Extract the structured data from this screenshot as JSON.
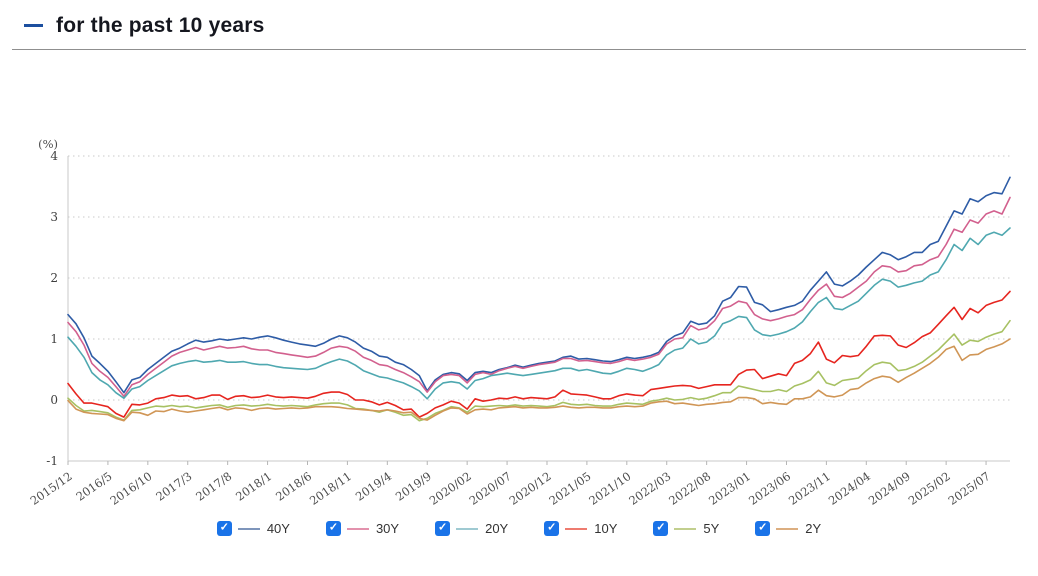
{
  "header": {
    "title": "for the past 10 years",
    "dash_color": "#1c4f9f"
  },
  "legend": {
    "checkbox_color": "#1a73e8",
    "check_glyph": "✓"
  },
  "chart_data": {
    "type": "line",
    "title": "",
    "ylabel": "(%)",
    "xlabel": "",
    "ylim": [
      -1,
      4
    ],
    "yticks": [
      4,
      3,
      2,
      1,
      0,
      -1
    ],
    "grid": "horizontal-dotted",
    "legend_position": "bottom",
    "x_start": "2015/12",
    "x_end": "2025/10",
    "x_interval": "monthly",
    "tick_every_months": 5,
    "x_tick_labels": [
      "2015/12",
      "2016/5",
      "2016/10",
      "2017/3",
      "2017/8",
      "2018/1",
      "2018/6",
      "2018/11",
      "2019/4",
      "2019/9",
      "2020/02",
      "2020/07",
      "2020/12",
      "2021/05",
      "2021/10",
      "2022/03",
      "2022/08",
      "2023/01",
      "2023/06",
      "2023/11",
      "2024/04",
      "2024/09",
      "2025/02",
      "2025/07"
    ],
    "series": [
      {
        "name": "40Y",
        "checked": true,
        "color": "#2e5ca6",
        "legend_color": "#7e95bb",
        "values": [
          1.4,
          1.25,
          1.02,
          0.72,
          0.6,
          0.47,
          0.3,
          0.12,
          0.33,
          0.37,
          0.5,
          0.6,
          0.7,
          0.8,
          0.85,
          0.92,
          0.98,
          0.95,
          0.97,
          1.0,
          0.98,
          1.0,
          1.02,
          1.0,
          1.03,
          1.05,
          1.02,
          0.98,
          0.95,
          0.92,
          0.9,
          0.88,
          0.93,
          1.0,
          1.05,
          1.02,
          0.95,
          0.85,
          0.8,
          0.72,
          0.7,
          0.62,
          0.58,
          0.5,
          0.4,
          0.15,
          0.33,
          0.42,
          0.45,
          0.43,
          0.32,
          0.45,
          0.47,
          0.45,
          0.5,
          0.53,
          0.57,
          0.54,
          0.57,
          0.6,
          0.62,
          0.64,
          0.7,
          0.72,
          0.67,
          0.68,
          0.66,
          0.64,
          0.63,
          0.66,
          0.7,
          0.68,
          0.7,
          0.73,
          0.78,
          0.96,
          1.05,
          1.1,
          1.29,
          1.24,
          1.26,
          1.38,
          1.62,
          1.68,
          1.86,
          1.85,
          1.6,
          1.56,
          1.45,
          1.48,
          1.52,
          1.55,
          1.62,
          1.8,
          1.95,
          2.1,
          1.9,
          1.87,
          1.95,
          2.05,
          2.18,
          2.3,
          2.42,
          2.38,
          2.3,
          2.35,
          2.42,
          2.42,
          2.55,
          2.6,
          2.85,
          3.1,
          3.05,
          3.3,
          3.25,
          3.35,
          3.4,
          3.38,
          3.65
        ]
      },
      {
        "name": "30Y",
        "checked": true,
        "color": "#d2608e",
        "legend_color": "#e392ad",
        "values": [
          1.27,
          1.12,
          0.9,
          0.6,
          0.47,
          0.37,
          0.22,
          0.06,
          0.25,
          0.3,
          0.42,
          0.52,
          0.62,
          0.72,
          0.78,
          0.82,
          0.86,
          0.82,
          0.85,
          0.88,
          0.85,
          0.86,
          0.88,
          0.84,
          0.82,
          0.82,
          0.78,
          0.76,
          0.74,
          0.72,
          0.7,
          0.72,
          0.78,
          0.85,
          0.88,
          0.86,
          0.8,
          0.7,
          0.65,
          0.58,
          0.56,
          0.5,
          0.45,
          0.38,
          0.3,
          0.13,
          0.3,
          0.4,
          0.42,
          0.4,
          0.28,
          0.42,
          0.45,
          0.42,
          0.48,
          0.52,
          0.55,
          0.52,
          0.55,
          0.58,
          0.6,
          0.62,
          0.68,
          0.68,
          0.64,
          0.65,
          0.63,
          0.61,
          0.6,
          0.63,
          0.67,
          0.65,
          0.67,
          0.7,
          0.75,
          0.92,
          1.0,
          1.02,
          1.22,
          1.15,
          1.18,
          1.3,
          1.5,
          1.54,
          1.62,
          1.59,
          1.4,
          1.33,
          1.3,
          1.33,
          1.37,
          1.4,
          1.48,
          1.65,
          1.8,
          1.9,
          1.7,
          1.68,
          1.75,
          1.85,
          1.95,
          2.1,
          2.2,
          2.18,
          2.1,
          2.12,
          2.2,
          2.22,
          2.3,
          2.35,
          2.55,
          2.8,
          2.75,
          2.95,
          2.9,
          3.05,
          3.1,
          3.05,
          3.32
        ]
      },
      {
        "name": "20Y",
        "checked": true,
        "color": "#4fa8b0",
        "legend_color": "#9fcad2",
        "values": [
          1.03,
          0.88,
          0.7,
          0.45,
          0.33,
          0.25,
          0.12,
          0.03,
          0.18,
          0.22,
          0.32,
          0.4,
          0.48,
          0.56,
          0.6,
          0.63,
          0.65,
          0.62,
          0.63,
          0.65,
          0.62,
          0.62,
          0.63,
          0.6,
          0.58,
          0.58,
          0.55,
          0.53,
          0.52,
          0.51,
          0.5,
          0.52,
          0.58,
          0.63,
          0.67,
          0.64,
          0.57,
          0.48,
          0.43,
          0.38,
          0.36,
          0.32,
          0.28,
          0.22,
          0.15,
          0.02,
          0.18,
          0.28,
          0.3,
          0.28,
          0.18,
          0.32,
          0.35,
          0.4,
          0.42,
          0.44,
          0.42,
          0.4,
          0.42,
          0.44,
          0.46,
          0.48,
          0.52,
          0.52,
          0.48,
          0.5,
          0.47,
          0.44,
          0.43,
          0.47,
          0.52,
          0.5,
          0.47,
          0.52,
          0.58,
          0.74,
          0.82,
          0.85,
          1.0,
          0.92,
          0.95,
          1.05,
          1.25,
          1.3,
          1.37,
          1.35,
          1.15,
          1.07,
          1.05,
          1.08,
          1.12,
          1.18,
          1.28,
          1.45,
          1.6,
          1.68,
          1.5,
          1.48,
          1.55,
          1.62,
          1.75,
          1.88,
          1.98,
          1.95,
          1.85,
          1.88,
          1.92,
          1.95,
          2.05,
          2.1,
          2.3,
          2.55,
          2.45,
          2.65,
          2.55,
          2.7,
          2.75,
          2.7,
          2.82
        ]
      },
      {
        "name": "10Y",
        "checked": true,
        "color": "#e6251f",
        "legend_color": "#ee7b6f",
        "values": [
          0.27,
          0.1,
          -0.05,
          -0.05,
          -0.08,
          -0.11,
          -0.22,
          -0.28,
          -0.07,
          -0.08,
          -0.05,
          0.02,
          0.04,
          0.08,
          0.06,
          0.07,
          0.02,
          0.04,
          0.08,
          0.08,
          0.01,
          0.06,
          0.07,
          0.04,
          0.05,
          0.08,
          0.05,
          0.04,
          0.05,
          0.04,
          0.03,
          0.06,
          0.11,
          0.13,
          0.13,
          0.09,
          0.0,
          0.0,
          -0.03,
          -0.08,
          -0.04,
          -0.09,
          -0.16,
          -0.15,
          -0.28,
          -0.22,
          -0.13,
          -0.08,
          -0.02,
          -0.05,
          -0.15,
          0.02,
          -0.02,
          0.0,
          0.03,
          0.02,
          0.05,
          0.02,
          0.04,
          0.03,
          0.02,
          0.05,
          0.16,
          0.1,
          0.09,
          0.08,
          0.05,
          0.02,
          0.02,
          0.07,
          0.1,
          0.08,
          0.07,
          0.17,
          0.19,
          0.21,
          0.23,
          0.24,
          0.23,
          0.19,
          0.22,
          0.25,
          0.25,
          0.25,
          0.42,
          0.49,
          0.5,
          0.35,
          0.39,
          0.43,
          0.4,
          0.6,
          0.65,
          0.76,
          0.95,
          0.67,
          0.61,
          0.73,
          0.71,
          0.73,
          0.88,
          1.05,
          1.06,
          1.05,
          0.9,
          0.86,
          0.94,
          1.04,
          1.1,
          1.24,
          1.38,
          1.52,
          1.32,
          1.5,
          1.43,
          1.55,
          1.6,
          1.64,
          1.78
        ]
      },
      {
        "name": "5Y",
        "checked": true,
        "color": "#a7c163",
        "legend_color": "#c2cf8e",
        "values": [
          0.03,
          -0.09,
          -0.18,
          -0.17,
          -0.19,
          -0.21,
          -0.28,
          -0.33,
          -0.17,
          -0.16,
          -0.13,
          -0.1,
          -0.11,
          -0.09,
          -0.11,
          -0.1,
          -0.13,
          -0.11,
          -0.09,
          -0.08,
          -0.12,
          -0.09,
          -0.08,
          -0.1,
          -0.09,
          -0.07,
          -0.09,
          -0.1,
          -0.09,
          -0.1,
          -0.11,
          -0.08,
          -0.06,
          -0.05,
          -0.05,
          -0.08,
          -0.14,
          -0.15,
          -0.17,
          -0.2,
          -0.16,
          -0.2,
          -0.25,
          -0.24,
          -0.34,
          -0.3,
          -0.22,
          -0.17,
          -0.11,
          -0.13,
          -0.2,
          -0.1,
          -0.11,
          -0.1,
          -0.09,
          -0.1,
          -0.08,
          -0.1,
          -0.09,
          -0.1,
          -0.11,
          -0.09,
          -0.04,
          -0.07,
          -0.08,
          -0.07,
          -0.09,
          -0.1,
          -0.1,
          -0.07,
          -0.05,
          -0.06,
          -0.07,
          -0.02,
          0.0,
          0.03,
          0.0,
          0.01,
          0.04,
          0.01,
          0.03,
          0.07,
          0.12,
          0.12,
          0.23,
          0.2,
          0.17,
          0.14,
          0.14,
          0.17,
          0.14,
          0.23,
          0.27,
          0.33,
          0.47,
          0.28,
          0.24,
          0.32,
          0.34,
          0.36,
          0.48,
          0.58,
          0.62,
          0.6,
          0.48,
          0.5,
          0.55,
          0.62,
          0.72,
          0.82,
          0.95,
          1.08,
          0.9,
          0.98,
          0.96,
          1.03,
          1.08,
          1.12,
          1.3
        ]
      },
      {
        "name": "2Y",
        "checked": true,
        "color": "#d09656",
        "legend_color": "#dcae80",
        "values": [
          -0.01,
          -0.15,
          -0.2,
          -0.22,
          -0.23,
          -0.24,
          -0.3,
          -0.34,
          -0.2,
          -0.21,
          -0.25,
          -0.18,
          -0.19,
          -0.15,
          -0.18,
          -0.2,
          -0.18,
          -0.16,
          -0.14,
          -0.12,
          -0.16,
          -0.13,
          -0.14,
          -0.17,
          -0.14,
          -0.13,
          -0.15,
          -0.14,
          -0.13,
          -0.14,
          -0.13,
          -0.11,
          -0.11,
          -0.11,
          -0.12,
          -0.14,
          -0.15,
          -0.16,
          -0.17,
          -0.18,
          -0.16,
          -0.18,
          -0.21,
          -0.2,
          -0.3,
          -0.33,
          -0.25,
          -0.18,
          -0.13,
          -0.14,
          -0.23,
          -0.16,
          -0.15,
          -0.16,
          -0.13,
          -0.12,
          -0.11,
          -0.13,
          -0.12,
          -0.13,
          -0.13,
          -0.12,
          -0.1,
          -0.12,
          -0.13,
          -0.12,
          -0.12,
          -0.13,
          -0.13,
          -0.11,
          -0.1,
          -0.11,
          -0.1,
          -0.05,
          -0.03,
          -0.02,
          -0.06,
          -0.05,
          -0.07,
          -0.09,
          -0.07,
          -0.06,
          -0.04,
          -0.03,
          0.04,
          0.04,
          0.02,
          -0.06,
          -0.04,
          -0.06,
          -0.07,
          0.02,
          0.02,
          0.05,
          0.16,
          0.07,
          0.05,
          0.08,
          0.17,
          0.19,
          0.28,
          0.35,
          0.39,
          0.37,
          0.29,
          0.37,
          0.44,
          0.52,
          0.6,
          0.7,
          0.83,
          0.88,
          0.65,
          0.74,
          0.75,
          0.83,
          0.87,
          0.92,
          1.0
        ]
      }
    ]
  }
}
